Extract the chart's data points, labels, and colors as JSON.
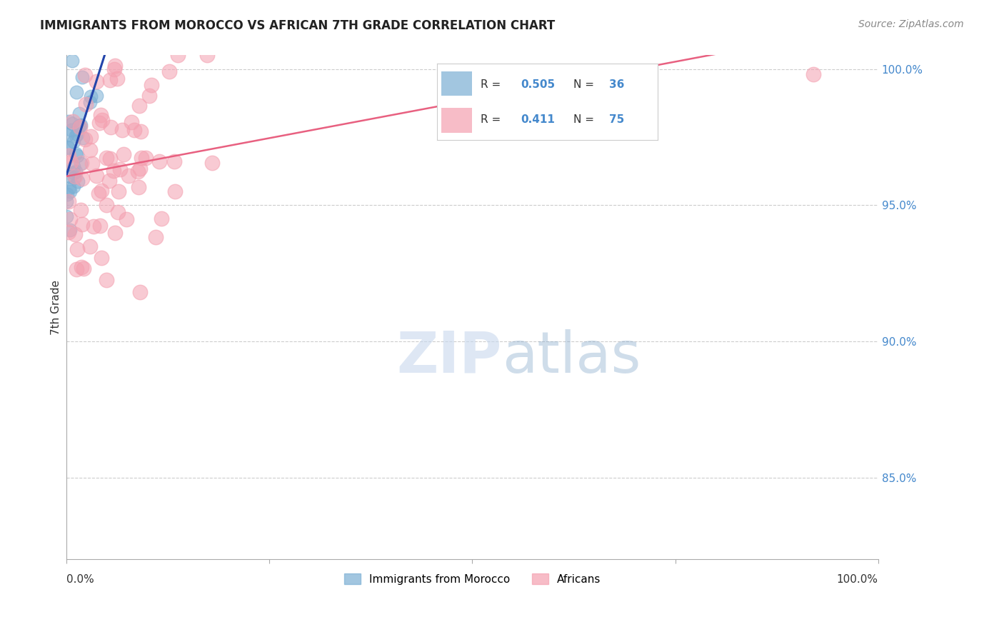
{
  "title": "IMMIGRANTS FROM MOROCCO VS AFRICAN 7TH GRADE CORRELATION CHART",
  "source": "Source: ZipAtlas.com",
  "ylabel": "7th Grade",
  "right_yticks": [
    "100.0%",
    "95.0%",
    "90.0%",
    "85.0%"
  ],
  "right_ytick_vals": [
    1.0,
    0.95,
    0.9,
    0.85
  ],
  "legend_blue_r": "0.505",
  "legend_blue_n": "36",
  "legend_pink_r": "0.411",
  "legend_pink_n": "75",
  "blue_color": "#7bafd4",
  "pink_color": "#f4a0b0",
  "blue_line_color": "#2244aa",
  "pink_line_color": "#e86080",
  "xlim": [
    0.0,
    1.0
  ],
  "ylim": [
    0.82,
    1.005
  ],
  "background_color": "#ffffff",
  "grid_color": "#cccccc"
}
